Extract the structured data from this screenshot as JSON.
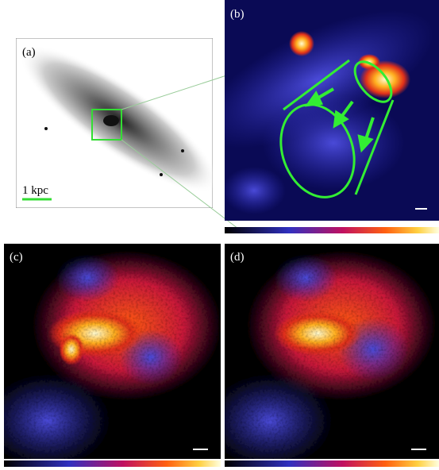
{
  "panels": [
    {
      "label": "(a)",
      "scale_bar": "1 kpc"
    },
    {
      "label": "(b)"
    },
    {
      "label": "(c)"
    },
    {
      "label": "(d)"
    }
  ]
}
